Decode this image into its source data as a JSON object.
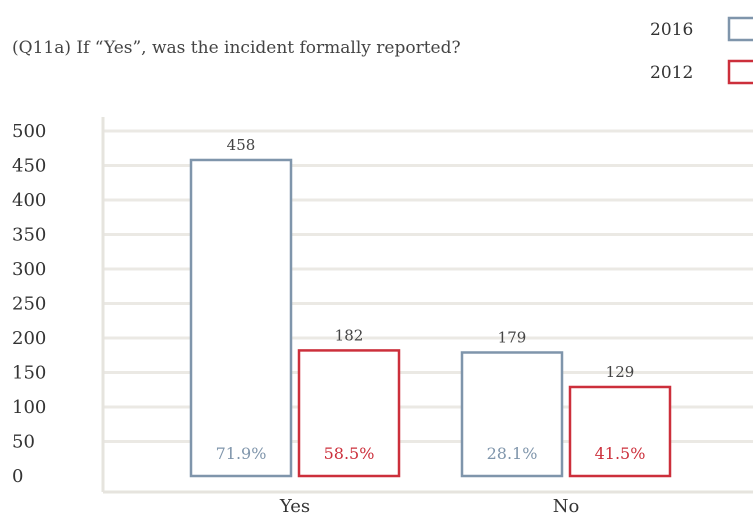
{
  "title": "(Q11a) If “Yes”, was the incident formally reported?",
  "chart_data": {
    "type": "bar",
    "categories": [
      "Yes",
      "No"
    ],
    "series": [
      {
        "name": "2016",
        "values": [
          458,
          179
        ],
        "percent_labels": [
          "71.9%",
          "28.1%"
        ],
        "color": "#7f95ab"
      },
      {
        "name": "2012",
        "values": [
          182,
          129
        ],
        "percent_labels": [
          "58.5%",
          "41.5%"
        ],
        "color": "#cc2f3b"
      }
    ],
    "ylim": [
      0,
      500
    ],
    "yticks": [
      0,
      50,
      100,
      150,
      200,
      250,
      300,
      350,
      400,
      450,
      500
    ],
    "grid": true,
    "legend_position": "top-right",
    "xlabel": "",
    "ylabel": ""
  },
  "colors": {
    "grid": "#ebe9e4",
    "axis": "#e6e4de"
  }
}
